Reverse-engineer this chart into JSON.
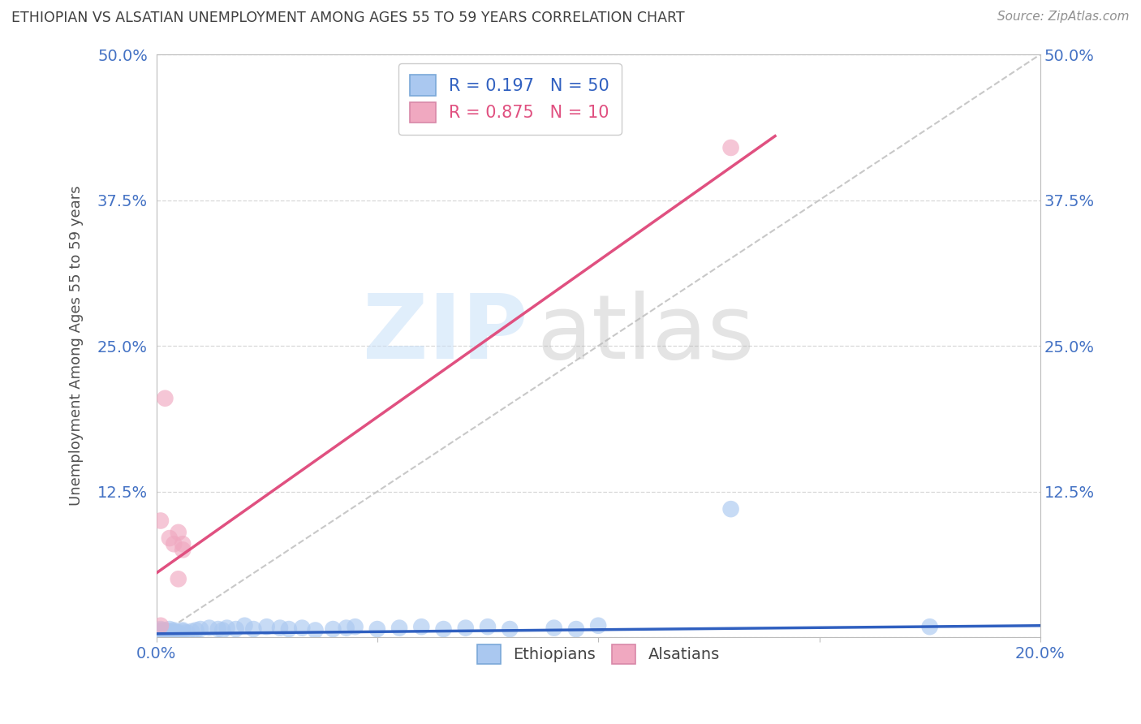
{
  "title": "ETHIOPIAN VS ALSATIAN UNEMPLOYMENT AMONG AGES 55 TO 59 YEARS CORRELATION CHART",
  "source": "Source: ZipAtlas.com",
  "ylabel": "Unemployment Among Ages 55 to 59 years",
  "xlim": [
    0.0,
    0.2
  ],
  "ylim": [
    0.0,
    0.5
  ],
  "ethiopian_color": "#aac8f0",
  "alsatian_color": "#f0a8c0",
  "ethiopian_line_color": "#3060c0",
  "alsatian_line_color": "#e05080",
  "dashed_line_color": "#c8c8c8",
  "grid_color": "#d8d8d8",
  "title_color": "#404040",
  "axis_label_color": "#505050",
  "tick_color": "#4472c4",
  "background_color": "#ffffff",
  "R_ethiopian": 0.197,
  "N_ethiopian": 50,
  "R_alsatian": 0.875,
  "N_alsatian": 10,
  "eth_x": [
    0.001,
    0.001,
    0.001,
    0.001,
    0.001,
    0.002,
    0.002,
    0.002,
    0.002,
    0.003,
    0.003,
    0.003,
    0.004,
    0.004,
    0.004,
    0.005,
    0.005,
    0.006,
    0.006,
    0.007,
    0.008,
    0.009,
    0.01,
    0.012,
    0.014,
    0.015,
    0.016,
    0.018,
    0.02,
    0.022,
    0.025,
    0.028,
    0.03,
    0.033,
    0.036,
    0.04,
    0.043,
    0.045,
    0.05,
    0.055,
    0.06,
    0.065,
    0.07,
    0.075,
    0.08,
    0.09,
    0.095,
    0.1,
    0.13,
    0.175
  ],
  "eth_y": [
    0.005,
    0.004,
    0.006,
    0.003,
    0.007,
    0.005,
    0.003,
    0.004,
    0.006,
    0.003,
    0.005,
    0.007,
    0.004,
    0.006,
    0.005,
    0.003,
    0.004,
    0.005,
    0.006,
    0.004,
    0.005,
    0.006,
    0.007,
    0.008,
    0.007,
    0.006,
    0.008,
    0.007,
    0.01,
    0.007,
    0.009,
    0.008,
    0.007,
    0.008,
    0.006,
    0.007,
    0.008,
    0.009,
    0.007,
    0.008,
    0.009,
    0.007,
    0.008,
    0.009,
    0.007,
    0.008,
    0.007,
    0.01,
    0.11,
    0.009
  ],
  "als_x": [
    0.001,
    0.001,
    0.002,
    0.003,
    0.004,
    0.005,
    0.005,
    0.006,
    0.006,
    0.13
  ],
  "als_y": [
    0.01,
    0.1,
    0.205,
    0.085,
    0.08,
    0.09,
    0.05,
    0.08,
    0.075,
    0.42
  ],
  "eth_line_x": [
    0.0,
    0.2
  ],
  "eth_line_y": [
    0.003,
    0.01
  ],
  "als_line_x": [
    0.0,
    0.14
  ],
  "als_line_y": [
    0.055,
    0.43
  ]
}
